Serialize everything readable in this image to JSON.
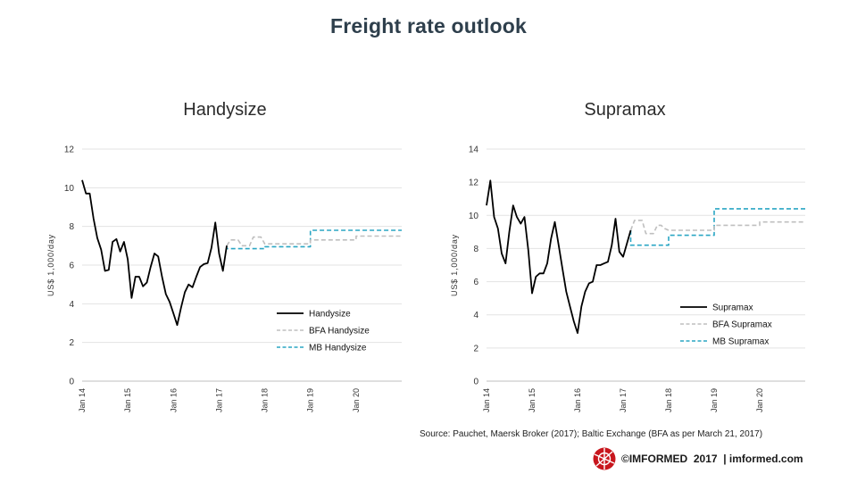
{
  "title": "Freight rate outlook",
  "source": "Source: Pauchet, Maersk Broker (2017); Baltic Exchange (BFA as per March 21, 2017)",
  "footer": {
    "brand": "©IMFORMED",
    "year": "2017",
    "site": "| imformed.com"
  },
  "colors": {
    "actual": "#000000",
    "bfa": "#bfbfbf",
    "mb": "#2aa6c4",
    "title": "#2e3f4c"
  },
  "chart_data": [
    {
      "type": "line",
      "title": "Handysize",
      "ylabel": "US$ 1,000/day",
      "ylim": [
        0,
        12
      ],
      "yticks": [
        0,
        2,
        4,
        6,
        8,
        10,
        12
      ],
      "x_tick_labels": [
        "Jan 14",
        "Jan 15",
        "Jan 16",
        "Jan 17",
        "Jan 18",
        "Jan 19",
        "Jan 20"
      ],
      "x_tick_months": [
        0,
        12,
        24,
        36,
        48,
        60,
        72
      ],
      "xlim_months": [
        0,
        84
      ],
      "legend_position": "lower-right",
      "series": [
        {
          "name": "Handysize",
          "style": "solid",
          "color": "#000000",
          "points": [
            [
              0,
              10.4
            ],
            [
              1,
              9.7
            ],
            [
              2,
              9.7
            ],
            [
              3,
              8.4
            ],
            [
              4,
              7.4
            ],
            [
              5,
              6.8
            ],
            [
              6,
              5.7
            ],
            [
              7,
              5.75
            ],
            [
              8,
              7.2
            ],
            [
              9,
              7.35
            ],
            [
              10,
              6.7
            ],
            [
              11,
              7.2
            ],
            [
              12,
              6.3
            ],
            [
              13,
              4.3
            ],
            [
              14,
              5.4
            ],
            [
              15,
              5.4
            ],
            [
              16,
              4.9
            ],
            [
              17,
              5.1
            ],
            [
              18,
              5.9
            ],
            [
              19,
              6.6
            ],
            [
              20,
              6.45
            ],
            [
              21,
              5.4
            ],
            [
              22,
              4.5
            ],
            [
              23,
              4.1
            ],
            [
              24,
              3.5
            ],
            [
              25,
              2.9
            ],
            [
              26,
              3.8
            ],
            [
              27,
              4.6
            ],
            [
              28,
              5.0
            ],
            [
              29,
              4.85
            ],
            [
              30,
              5.4
            ],
            [
              31,
              5.9
            ],
            [
              32,
              6.05
            ],
            [
              33,
              6.1
            ],
            [
              34,
              6.9
            ],
            [
              35,
              8.2
            ],
            [
              36,
              6.6
            ],
            [
              37,
              5.7
            ],
            [
              38,
              7.0
            ]
          ]
        },
        {
          "name": "BFA Handysize",
          "style": "dashed",
          "color": "#bfbfbf",
          "points": [
            [
              38,
              7.0
            ],
            [
              39,
              7.3
            ],
            [
              40,
              7.3
            ],
            [
              41,
              7.3
            ],
            [
              42,
              7.0
            ],
            [
              43,
              7.0
            ],
            [
              44,
              7.0
            ],
            [
              45,
              7.45
            ],
            [
              46,
              7.45
            ],
            [
              47,
              7.45
            ],
            [
              48,
              7.1
            ],
            [
              60,
              7.1
            ],
            [
              60,
              7.3
            ],
            [
              72,
              7.3
            ],
            [
              72,
              7.5
            ],
            [
              84,
              7.5
            ]
          ]
        },
        {
          "name": "MB Handysize",
          "style": "dashed",
          "color": "#2aa6c4",
          "points": [
            [
              38,
              7.0
            ],
            [
              38,
              6.85
            ],
            [
              48,
              6.85
            ],
            [
              48,
              6.95
            ],
            [
              60,
              6.95
            ],
            [
              60,
              7.8
            ],
            [
              84,
              7.8
            ]
          ]
        }
      ]
    },
    {
      "type": "line",
      "title": "Supramax",
      "ylabel": "US$ 1,000/day",
      "ylim": [
        0,
        14
      ],
      "yticks": [
        0,
        2,
        4,
        6,
        8,
        10,
        12,
        14
      ],
      "x_tick_labels": [
        "Jan 14",
        "Jan 15",
        "Jan 16",
        "Jan 17",
        "Jan 18",
        "Jan 19",
        "Jan 20"
      ],
      "x_tick_months": [
        0,
        12,
        24,
        36,
        48,
        60,
        72
      ],
      "xlim_months": [
        0,
        84
      ],
      "legend_position": "lower-right",
      "series": [
        {
          "name": "Supramax",
          "style": "solid",
          "color": "#000000",
          "points": [
            [
              0,
              10.6
            ],
            [
              1,
              12.1
            ],
            [
              2,
              9.9
            ],
            [
              3,
              9.2
            ],
            [
              4,
              7.7
            ],
            [
              5,
              7.1
            ],
            [
              6,
              9.0
            ],
            [
              7,
              10.6
            ],
            [
              8,
              9.9
            ],
            [
              9,
              9.5
            ],
            [
              10,
              9.9
            ],
            [
              11,
              7.9
            ],
            [
              12,
              5.3
            ],
            [
              13,
              6.3
            ],
            [
              14,
              6.5
            ],
            [
              15,
              6.5
            ],
            [
              16,
              7.1
            ],
            [
              17,
              8.6
            ],
            [
              18,
              9.6
            ],
            [
              19,
              8.2
            ],
            [
              20,
              6.8
            ],
            [
              21,
              5.4
            ],
            [
              22,
              4.5
            ],
            [
              23,
              3.6
            ],
            [
              24,
              2.9
            ],
            [
              25,
              4.5
            ],
            [
              26,
              5.4
            ],
            [
              27,
              5.9
            ],
            [
              28,
              6.0
            ],
            [
              29,
              7.0
            ],
            [
              30,
              7.0
            ],
            [
              31,
              7.1
            ],
            [
              32,
              7.2
            ],
            [
              33,
              8.2
            ],
            [
              34,
              9.8
            ],
            [
              35,
              7.8
            ],
            [
              36,
              7.5
            ],
            [
              38,
              9.1
            ]
          ]
        },
        {
          "name": "BFA Supramax",
          "style": "dashed",
          "color": "#bfbfbf",
          "points": [
            [
              38,
              9.1
            ],
            [
              39,
              9.7
            ],
            [
              40,
              9.7
            ],
            [
              41,
              9.7
            ],
            [
              42,
              8.9
            ],
            [
              43,
              8.9
            ],
            [
              44,
              8.9
            ],
            [
              45,
              9.4
            ],
            [
              46,
              9.4
            ],
            [
              47,
              9.2
            ],
            [
              48,
              9.1
            ],
            [
              60,
              9.1
            ],
            [
              60,
              9.4
            ],
            [
              72,
              9.4
            ],
            [
              72,
              9.6
            ],
            [
              84,
              9.6
            ]
          ]
        },
        {
          "name": "MB Supramax",
          "style": "dashed",
          "color": "#2aa6c4",
          "points": [
            [
              38,
              9.1
            ],
            [
              38,
              8.2
            ],
            [
              48,
              8.2
            ],
            [
              48,
              8.8
            ],
            [
              60,
              8.8
            ],
            [
              60,
              10.4
            ],
            [
              84,
              10.4
            ]
          ]
        }
      ]
    }
  ]
}
